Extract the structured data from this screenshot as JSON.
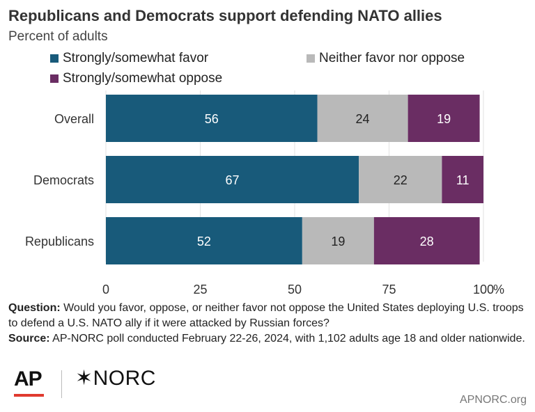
{
  "title": "Republicans and Democrats support defending NATO allies",
  "subtitle": "Percent of adults",
  "legend": [
    {
      "label": "Strongly/somewhat favor",
      "color": "#185a7a"
    },
    {
      "label": "Neither favor nor oppose",
      "color": "#b9b9b9"
    },
    {
      "label": "Strongly/somewhat oppose",
      "color": "#6a2d63"
    }
  ],
  "chart_data": {
    "type": "bar",
    "orientation": "horizontal",
    "stacked": true,
    "categories": [
      "Overall",
      "Democrats",
      "Republicans"
    ],
    "series": [
      {
        "name": "Strongly/somewhat favor",
        "values": [
          56,
          67,
          52
        ],
        "color": "#185a7a",
        "label_color": "#ffffff"
      },
      {
        "name": "Neither favor nor oppose",
        "values": [
          24,
          22,
          19
        ],
        "color": "#b9b9b9",
        "label_color": "#222222"
      },
      {
        "name": "Strongly/somewhat oppose",
        "values": [
          19,
          11,
          28
        ],
        "color": "#6a2d63",
        "label_color": "#ffffff"
      }
    ],
    "xlim": [
      0,
      100
    ],
    "xticks": [
      "0",
      "25",
      "50",
      "75",
      "100"
    ],
    "x_unit": "%",
    "grid": true
  },
  "note": {
    "question_label": "Question:",
    "question_text": " Would you favor, oppose, or neither favor not oppose the United States deploying U.S. troops to defend a U.S. NATO ally if it were attacked by Russian forces?",
    "source_label": "Source:",
    "source_text": " AP-NORC poll conducted February 22-26, 2024, with 1,102 adults age 18 and older nationwide."
  },
  "logos": {
    "ap": "AP",
    "norc": "✶NORC"
  },
  "footer_url": "APNORC.org"
}
